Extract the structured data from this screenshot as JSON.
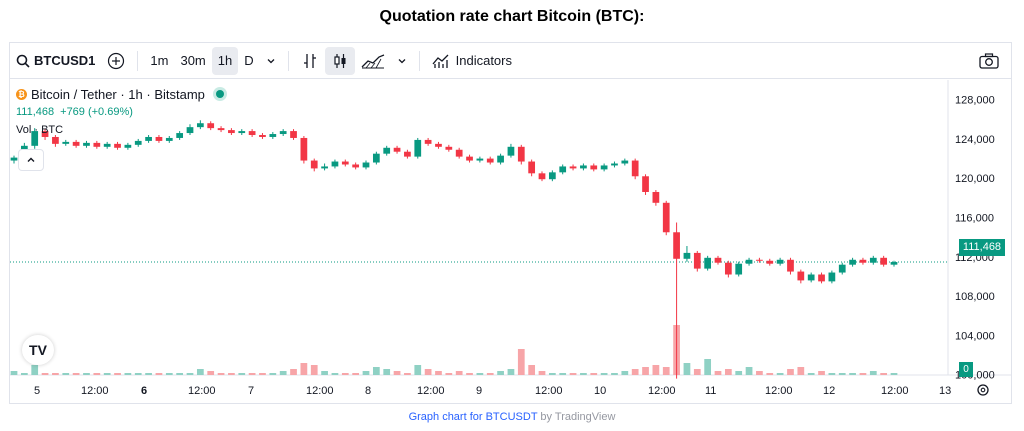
{
  "page": {
    "title": "Quotation rate chart Bitcoin (BTC):"
  },
  "toolbar": {
    "symbol": "BTCUSD1",
    "intervals": [
      "1m",
      "30m",
      "1h",
      "D"
    ],
    "active_interval": "1h",
    "indicators_label": "Indicators"
  },
  "legend": {
    "symbol_title": "Bitcoin / Tether · 1h · Bitstamp",
    "price": "111,468",
    "change": "+769 (+0.69%)",
    "volume_label": "Vol · BTC"
  },
  "price_tag": "111,468",
  "volume_tag": "0",
  "footer": {
    "link_text": "Graph chart for BTCUSDT",
    "by_text": "by TradingView"
  },
  "colors": {
    "up": "#089981",
    "down": "#f23645",
    "vol_up": "#8fd1c4",
    "vol_down": "#f7a5a8"
  },
  "chart_data": {
    "type": "candlestick",
    "title": "",
    "xlabel": "",
    "ylabel": "",
    "ylim": [
      96000,
      130000
    ],
    "y_ticks": [
      "128,000",
      "124,000",
      "120,000",
      "116,000",
      "112,000",
      "108,000",
      "104,000",
      "100,000"
    ],
    "x_ticks": [
      "5",
      "12:00",
      "6",
      "12:00",
      "7",
      "12:00",
      "8",
      "12:00",
      "9",
      "12:00",
      "10",
      "12:00",
      "11",
      "12:00",
      "12",
      "12:00",
      "13"
    ],
    "x_ticks_bold": [
      "6"
    ],
    "last_price": 111468,
    "candles": [
      {
        "o": 121800,
        "c": 122100,
        "h": 122300,
        "l": 121500
      },
      {
        "o": 122100,
        "c": 123300,
        "h": 123600,
        "l": 121900
      },
      {
        "o": 123300,
        "c": 124800,
        "h": 125100,
        "l": 123000
      },
      {
        "o": 124800,
        "c": 124200,
        "h": 125000,
        "l": 123900
      },
      {
        "o": 124200,
        "c": 123500,
        "h": 124400,
        "l": 123200
      },
      {
        "o": 123500,
        "c": 123700,
        "h": 123900,
        "l": 123300
      },
      {
        "o": 123700,
        "c": 123300,
        "h": 123900,
        "l": 123100
      },
      {
        "o": 123300,
        "c": 123600,
        "h": 123800,
        "l": 123100
      },
      {
        "o": 123600,
        "c": 123200,
        "h": 123800,
        "l": 123000
      },
      {
        "o": 123200,
        "c": 123500,
        "h": 123700,
        "l": 123000
      },
      {
        "o": 123500,
        "c": 123100,
        "h": 123700,
        "l": 122900
      },
      {
        "o": 123100,
        "c": 123400,
        "h": 123600,
        "l": 122900
      },
      {
        "o": 123400,
        "c": 123800,
        "h": 124000,
        "l": 123200
      },
      {
        "o": 123800,
        "c": 124200,
        "h": 124400,
        "l": 123600
      },
      {
        "o": 124200,
        "c": 123800,
        "h": 124400,
        "l": 123600
      },
      {
        "o": 123800,
        "c": 124100,
        "h": 124300,
        "l": 123600
      },
      {
        "o": 124100,
        "c": 124600,
        "h": 124800,
        "l": 123900
      },
      {
        "o": 124600,
        "c": 125200,
        "h": 125500,
        "l": 124400
      },
      {
        "o": 125200,
        "c": 125600,
        "h": 125900,
        "l": 125000
      },
      {
        "o": 125600,
        "c": 125100,
        "h": 125800,
        "l": 124900
      },
      {
        "o": 125100,
        "c": 124900,
        "h": 125300,
        "l": 124700
      },
      {
        "o": 124900,
        "c": 124600,
        "h": 125100,
        "l": 124400
      },
      {
        "o": 124600,
        "c": 124800,
        "h": 125000,
        "l": 124400
      },
      {
        "o": 124800,
        "c": 124400,
        "h": 125000,
        "l": 124200
      },
      {
        "o": 124400,
        "c": 124200,
        "h": 124600,
        "l": 124000
      },
      {
        "o": 124200,
        "c": 124500,
        "h": 124700,
        "l": 124000
      },
      {
        "o": 124500,
        "c": 124800,
        "h": 125000,
        "l": 124300
      },
      {
        "o": 124800,
        "c": 124100,
        "h": 125000,
        "l": 123900
      },
      {
        "o": 124100,
        "c": 121800,
        "h": 124300,
        "l": 121500
      },
      {
        "o": 121800,
        "c": 121000,
        "h": 122000,
        "l": 120700
      },
      {
        "o": 121000,
        "c": 121200,
        "h": 121500,
        "l": 120800
      },
      {
        "o": 121200,
        "c": 121700,
        "h": 121900,
        "l": 121000
      },
      {
        "o": 121700,
        "c": 121400,
        "h": 121900,
        "l": 121200
      },
      {
        "o": 121400,
        "c": 121100,
        "h": 121600,
        "l": 120900
      },
      {
        "o": 121100,
        "c": 121600,
        "h": 121800,
        "l": 120900
      },
      {
        "o": 121600,
        "c": 122500,
        "h": 122700,
        "l": 121400
      },
      {
        "o": 122500,
        "c": 123100,
        "h": 123300,
        "l": 122300
      },
      {
        "o": 123100,
        "c": 122700,
        "h": 123300,
        "l": 122500
      },
      {
        "o": 122700,
        "c": 122200,
        "h": 122900,
        "l": 122000
      },
      {
        "o": 122200,
        "c": 123900,
        "h": 124100,
        "l": 122000
      },
      {
        "o": 123900,
        "c": 123500,
        "h": 124100,
        "l": 123300
      },
      {
        "o": 123500,
        "c": 123200,
        "h": 123700,
        "l": 123000
      },
      {
        "o": 123200,
        "c": 122900,
        "h": 123400,
        "l": 122700
      },
      {
        "o": 122900,
        "c": 122200,
        "h": 123100,
        "l": 122000
      },
      {
        "o": 122200,
        "c": 121800,
        "h": 122400,
        "l": 121600
      },
      {
        "o": 121800,
        "c": 122000,
        "h": 122200,
        "l": 121600
      },
      {
        "o": 122000,
        "c": 121600,
        "h": 122200,
        "l": 121400
      },
      {
        "o": 121600,
        "c": 122300,
        "h": 122500,
        "l": 121400
      },
      {
        "o": 122300,
        "c": 123200,
        "h": 123500,
        "l": 122100
      },
      {
        "o": 123200,
        "c": 121700,
        "h": 123400,
        "l": 121400
      },
      {
        "o": 121700,
        "c": 120500,
        "h": 121900,
        "l": 120200
      },
      {
        "o": 120500,
        "c": 119900,
        "h": 120700,
        "l": 119700
      },
      {
        "o": 119900,
        "c": 120600,
        "h": 120800,
        "l": 119700
      },
      {
        "o": 120600,
        "c": 121200,
        "h": 121400,
        "l": 120400
      },
      {
        "o": 121200,
        "c": 121000,
        "h": 121400,
        "l": 120800
      },
      {
        "o": 121000,
        "c": 121300,
        "h": 121500,
        "l": 120800
      },
      {
        "o": 121300,
        "c": 120900,
        "h": 121500,
        "l": 120700
      },
      {
        "o": 120900,
        "c": 121300,
        "h": 121500,
        "l": 120700
      },
      {
        "o": 121300,
        "c": 121500,
        "h": 121700,
        "l": 121100
      },
      {
        "o": 121500,
        "c": 121800,
        "h": 122000,
        "l": 121300
      },
      {
        "o": 121800,
        "c": 120200,
        "h": 122000,
        "l": 119900
      },
      {
        "o": 120200,
        "c": 118600,
        "h": 120400,
        "l": 118300
      },
      {
        "o": 118600,
        "c": 117500,
        "h": 118800,
        "l": 117200
      },
      {
        "o": 117500,
        "c": 114500,
        "h": 117700,
        "l": 114200
      },
      {
        "o": 114500,
        "c": 111800,
        "h": 115500,
        "l": 99600
      },
      {
        "o": 111800,
        "c": 112400,
        "h": 113100,
        "l": 111500
      },
      {
        "o": 112400,
        "c": 110800,
        "h": 112600,
        "l": 110500
      },
      {
        "o": 110800,
        "c": 111900,
        "h": 112100,
        "l": 110600
      },
      {
        "o": 111900,
        "c": 111400,
        "h": 112100,
        "l": 111200
      },
      {
        "o": 111400,
        "c": 110200,
        "h": 111600,
        "l": 109900
      },
      {
        "o": 110200,
        "c": 111300,
        "h": 111500,
        "l": 110000
      },
      {
        "o": 111300,
        "c": 111700,
        "h": 111900,
        "l": 111100
      },
      {
        "o": 111700,
        "c": 111600,
        "h": 111900,
        "l": 111400
      },
      {
        "o": 111600,
        "c": 111300,
        "h": 111800,
        "l": 111100
      },
      {
        "o": 111300,
        "c": 111700,
        "h": 111900,
        "l": 111100
      },
      {
        "o": 111700,
        "c": 110500,
        "h": 111900,
        "l": 110200
      },
      {
        "o": 110500,
        "c": 109600,
        "h": 110700,
        "l": 109300
      },
      {
        "o": 109600,
        "c": 110200,
        "h": 110400,
        "l": 109400
      },
      {
        "o": 110200,
        "c": 109500,
        "h": 110400,
        "l": 109300
      },
      {
        "o": 109500,
        "c": 110400,
        "h": 110600,
        "l": 109300
      },
      {
        "o": 110400,
        "c": 111200,
        "h": 111400,
        "l": 110200
      },
      {
        "o": 111200,
        "c": 111700,
        "h": 111900,
        "l": 111000
      },
      {
        "o": 111700,
        "c": 111400,
        "h": 111900,
        "l": 111200
      },
      {
        "o": 111400,
        "c": 111900,
        "h": 112100,
        "l": 111200
      },
      {
        "o": 111900,
        "c": 111200,
        "h": 112100,
        "l": 111000
      },
      {
        "o": 111200,
        "c": 111468,
        "h": 111600,
        "l": 111000
      }
    ],
    "volume": [
      2,
      1,
      5,
      1,
      1,
      1,
      1,
      1,
      1,
      1,
      1,
      1,
      1,
      1,
      1,
      1,
      1,
      1,
      3,
      2,
      1,
      1,
      1,
      1,
      1,
      1,
      2,
      3,
      6,
      5,
      2,
      1,
      1,
      1,
      2,
      4,
      3,
      2,
      1,
      5,
      3,
      2,
      1,
      2,
      1,
      1,
      1,
      2,
      3,
      13,
      5,
      2,
      1,
      1,
      1,
      1,
      1,
      1,
      1,
      2,
      3,
      4,
      5,
      4,
      25,
      6,
      3,
      8,
      2,
      3,
      2,
      4,
      2,
      1,
      1,
      3,
      4,
      1,
      2,
      1,
      1,
      1,
      1,
      2,
      1,
      1
    ],
    "volume_direction": [
      "up",
      "up",
      "up",
      "down",
      "down",
      "up",
      "down",
      "up",
      "down",
      "up",
      "down",
      "up",
      "up",
      "up",
      "down",
      "up",
      "up",
      "up",
      "up",
      "down",
      "down",
      "down",
      "up",
      "down",
      "down",
      "up",
      "up",
      "down",
      "down",
      "down",
      "up",
      "up",
      "down",
      "down",
      "up",
      "up",
      "up",
      "down",
      "down",
      "up",
      "down",
      "down",
      "down",
      "down",
      "down",
      "up",
      "down",
      "up",
      "up",
      "down",
      "down",
      "down",
      "up",
      "up",
      "down",
      "up",
      "down",
      "up",
      "up",
      "up",
      "down",
      "down",
      "down",
      "down",
      "down",
      "up",
      "down",
      "up",
      "down",
      "down",
      "up",
      "up",
      "down",
      "down",
      "up",
      "down",
      "down",
      "up",
      "down",
      "up",
      "up",
      "up",
      "down",
      "up",
      "down",
      "up"
    ]
  }
}
